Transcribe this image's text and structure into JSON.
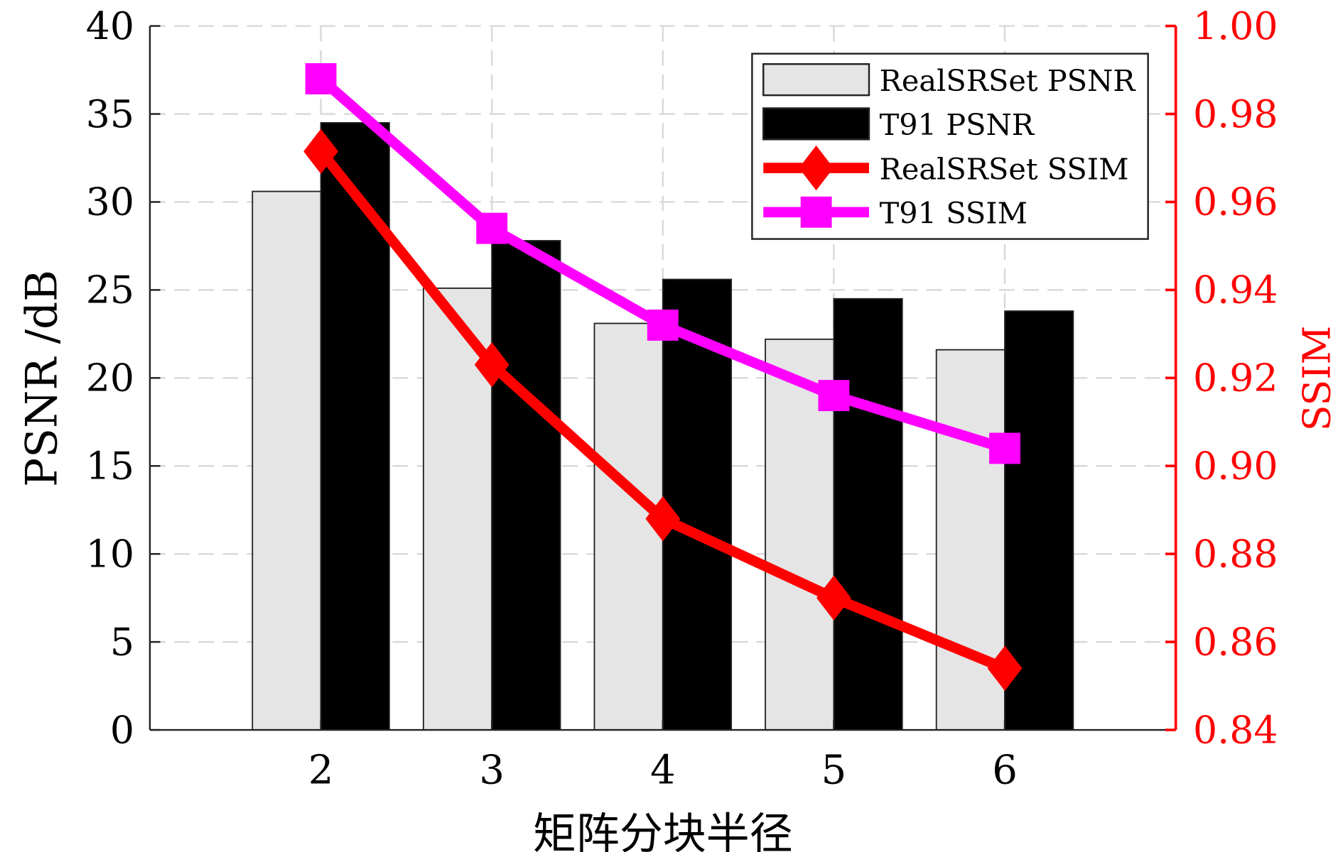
{
  "chart_data": {
    "type": "bar",
    "categories": [
      "2",
      "3",
      "4",
      "5",
      "6"
    ],
    "x": [
      2,
      3,
      4,
      5,
      6
    ],
    "xlim": [
      1,
      7
    ],
    "xlabel": "矩阵分块半径",
    "ylabel": "PSNR /dB",
    "ylabel_right": "SSIM",
    "ylim": [
      0,
      40
    ],
    "ylim_right": [
      0.84,
      1.0
    ],
    "yticks": [
      "0",
      "5",
      "10",
      "15",
      "20",
      "25",
      "30",
      "35",
      "40"
    ],
    "yticks_right": [
      "0.84",
      "0.86",
      "0.88",
      "0.90",
      "0.92",
      "0.94",
      "0.96",
      "0.98",
      "1.00"
    ],
    "grid": true,
    "legend_position": "top-right",
    "series": [
      {
        "name": "RealSRSet PSNR",
        "kind": "bar",
        "axis": "left",
        "color": "#e5e5e5",
        "values": [
          30.6,
          25.1,
          23.1,
          22.2,
          21.6
        ]
      },
      {
        "name": "T91 PSNR",
        "kind": "bar",
        "axis": "left",
        "color": "#000000",
        "values": [
          34.5,
          27.8,
          25.6,
          24.5,
          23.8
        ]
      },
      {
        "name": "RealSRSet SSIM",
        "kind": "line",
        "marker": "diamond",
        "axis": "right",
        "color": "#ff0000",
        "values": [
          0.9715,
          0.923,
          0.888,
          0.87,
          0.854
        ]
      },
      {
        "name": "T91 SSIM",
        "kind": "line",
        "marker": "square",
        "axis": "right",
        "color": "#ff00ff",
        "values": [
          0.988,
          0.954,
          0.932,
          0.916,
          0.904
        ]
      }
    ],
    "colors": {
      "right_axis": "#ff0000",
      "grid": "#d9d9d9"
    }
  }
}
